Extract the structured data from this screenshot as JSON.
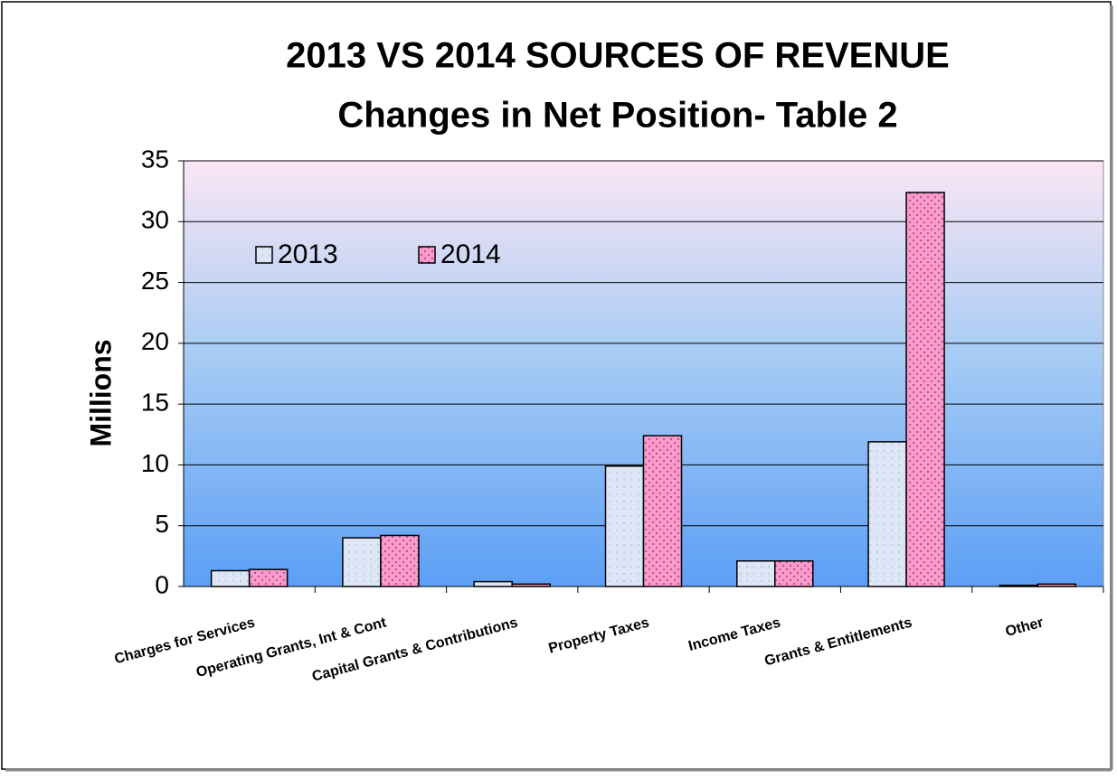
{
  "chart_data": {
    "type": "bar",
    "title": "2013 VS 2014 SOURCES OF REVENUE",
    "subtitle": "Changes in Net Position- Table 2",
    "y_label": "Millions",
    "categories": [
      "Charges for Services",
      "Operating Grants, Int & Cont",
      "Capital Grants & Contributions",
      "Property Taxes",
      "Income Taxes",
      "Grants & Entitlements",
      "Other"
    ],
    "series": [
      {
        "name": "2013",
        "color": "#dce6f5",
        "values": [
          1.3,
          4.0,
          0.4,
          9.9,
          2.1,
          11.9,
          0.1
        ]
      },
      {
        "name": "2014",
        "color": "#ff99cc",
        "values": [
          1.4,
          4.2,
          0.2,
          12.4,
          2.1,
          32.4,
          0.2
        ]
      }
    ],
    "ylim": [
      0,
      35
    ],
    "yticks": [
      0,
      5,
      10,
      15,
      20,
      25,
      30,
      35
    ],
    "grid": true,
    "legend": "top-left"
  }
}
